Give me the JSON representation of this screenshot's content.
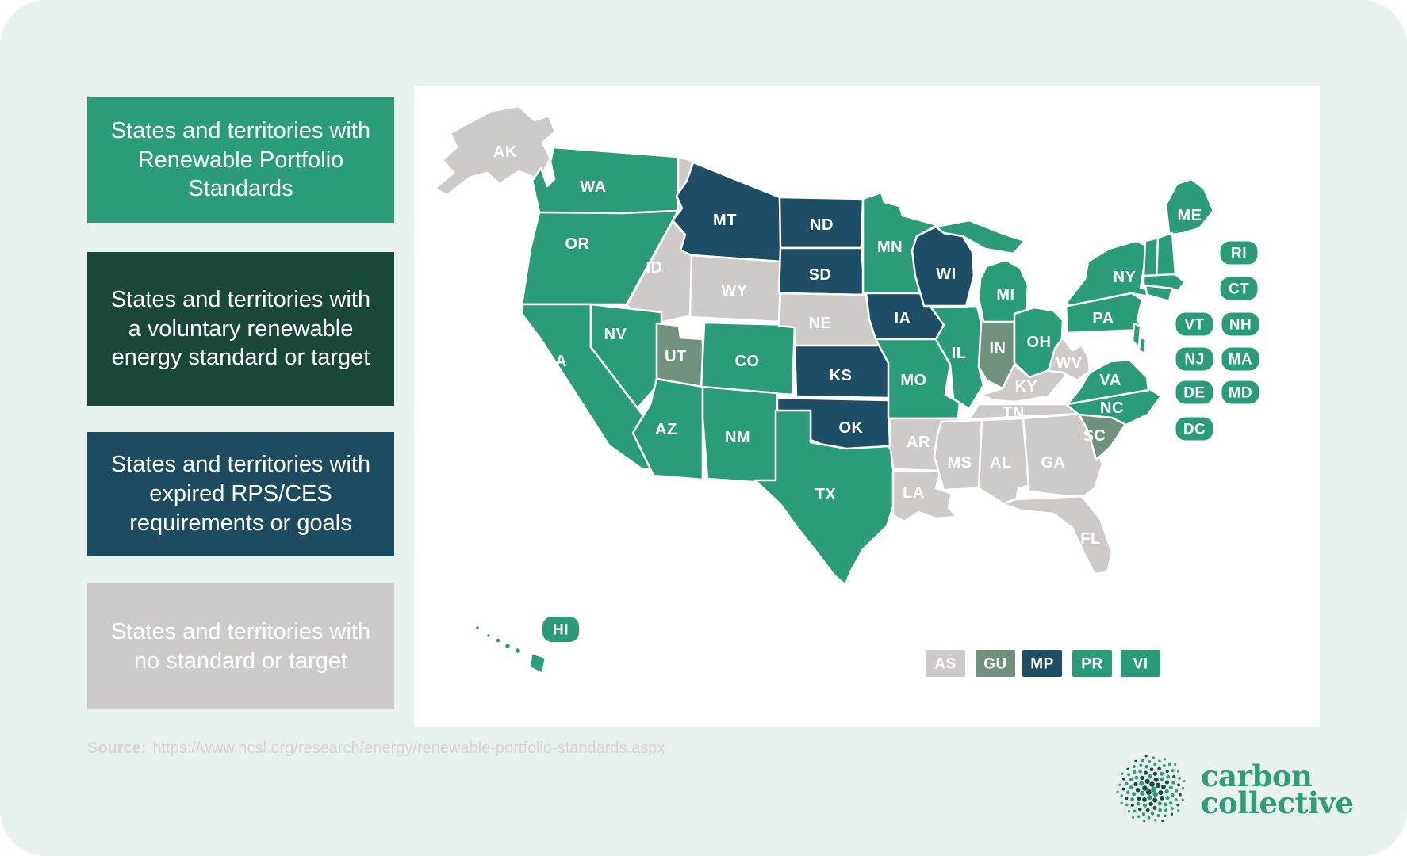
{
  "page": {
    "background": "#e7f1ed",
    "panel_background": "#ffffff"
  },
  "legend": {
    "items": [
      {
        "label": "States and territories with Renewable Portfolio Standards",
        "color": "#2b9c7a",
        "category": "rps"
      },
      {
        "label": "States and territories with a voluntary renewable energy standard or target",
        "color": "#19473a",
        "category": "voluntary"
      },
      {
        "label": "States and territories with expired RPS/CES requirements or goals",
        "color": "#1d4b60",
        "category": "expired"
      },
      {
        "label": "States and territories with no standard or target",
        "color": "#cecac8",
        "category": "none"
      }
    ]
  },
  "map": {
    "categories": {
      "rps": "#2b9c7a",
      "voluntary": "#71907e",
      "expired": "#1e4d66",
      "none": "#cecac8"
    },
    "states": [
      {
        "abbr": "WA",
        "category": "rps"
      },
      {
        "abbr": "OR",
        "category": "rps"
      },
      {
        "abbr": "CA",
        "category": "rps"
      },
      {
        "abbr": "NV",
        "category": "rps"
      },
      {
        "abbr": "AZ",
        "category": "rps"
      },
      {
        "abbr": "NM",
        "category": "rps"
      },
      {
        "abbr": "CO",
        "category": "rps"
      },
      {
        "abbr": "TX",
        "category": "rps"
      },
      {
        "abbr": "MN",
        "category": "rps"
      },
      {
        "abbr": "MI",
        "category": "rps"
      },
      {
        "abbr": "IL",
        "category": "rps"
      },
      {
        "abbr": "MO",
        "category": "rps"
      },
      {
        "abbr": "OH",
        "category": "rps"
      },
      {
        "abbr": "PA",
        "category": "rps"
      },
      {
        "abbr": "NY",
        "category": "rps"
      },
      {
        "abbr": "ME",
        "category": "rps"
      },
      {
        "abbr": "VA",
        "category": "rps"
      },
      {
        "abbr": "NC",
        "category": "rps"
      },
      {
        "abbr": "HI",
        "category": "rps"
      },
      {
        "abbr": "VT",
        "category": "rps"
      },
      {
        "abbr": "NH",
        "category": "rps"
      },
      {
        "abbr": "MA",
        "category": "rps"
      },
      {
        "abbr": "CT",
        "category": "rps"
      },
      {
        "abbr": "RI",
        "category": "rps"
      },
      {
        "abbr": "NJ",
        "category": "rps"
      },
      {
        "abbr": "DE",
        "category": "rps"
      },
      {
        "abbr": "MD",
        "category": "rps"
      },
      {
        "abbr": "DC",
        "category": "rps"
      },
      {
        "abbr": "MT",
        "category": "expired"
      },
      {
        "abbr": "ND",
        "category": "expired"
      },
      {
        "abbr": "SD",
        "category": "expired"
      },
      {
        "abbr": "IA",
        "category": "expired"
      },
      {
        "abbr": "WI",
        "category": "expired"
      },
      {
        "abbr": "KS",
        "category": "expired"
      },
      {
        "abbr": "OK",
        "category": "expired"
      },
      {
        "abbr": "UT",
        "category": "voluntary"
      },
      {
        "abbr": "IN",
        "category": "voluntary"
      },
      {
        "abbr": "SC",
        "category": "voluntary"
      },
      {
        "abbr": "AK",
        "category": "none"
      },
      {
        "abbr": "ID",
        "category": "none"
      },
      {
        "abbr": "WY",
        "category": "none"
      },
      {
        "abbr": "NE",
        "category": "none"
      },
      {
        "abbr": "KY",
        "category": "none"
      },
      {
        "abbr": "TN",
        "category": "none"
      },
      {
        "abbr": "WV",
        "category": "none"
      },
      {
        "abbr": "AR",
        "category": "none"
      },
      {
        "abbr": "LA",
        "category": "none"
      },
      {
        "abbr": "MS",
        "category": "none"
      },
      {
        "abbr": "AL",
        "category": "none"
      },
      {
        "abbr": "GA",
        "category": "none"
      },
      {
        "abbr": "FL",
        "category": "none"
      }
    ],
    "pills": [
      "RI",
      "CT",
      "VT",
      "NH",
      "NJ",
      "MA",
      "DE",
      "MD",
      "DC",
      "HI"
    ],
    "territories": [
      {
        "abbr": "AS",
        "category": "none"
      },
      {
        "abbr": "GU",
        "category": "voluntary"
      },
      {
        "abbr": "MP",
        "category": "expired"
      },
      {
        "abbr": "PR",
        "category": "rps"
      },
      {
        "abbr": "VI",
        "category": "rps"
      }
    ]
  },
  "source": {
    "label": "Source:",
    "url": "https://www.ncsl.org/research/energy/renewable-portfolio-standards.aspx"
  },
  "logo": {
    "line1": "carbon",
    "line2": "collective",
    "color": "#2f9e77"
  }
}
